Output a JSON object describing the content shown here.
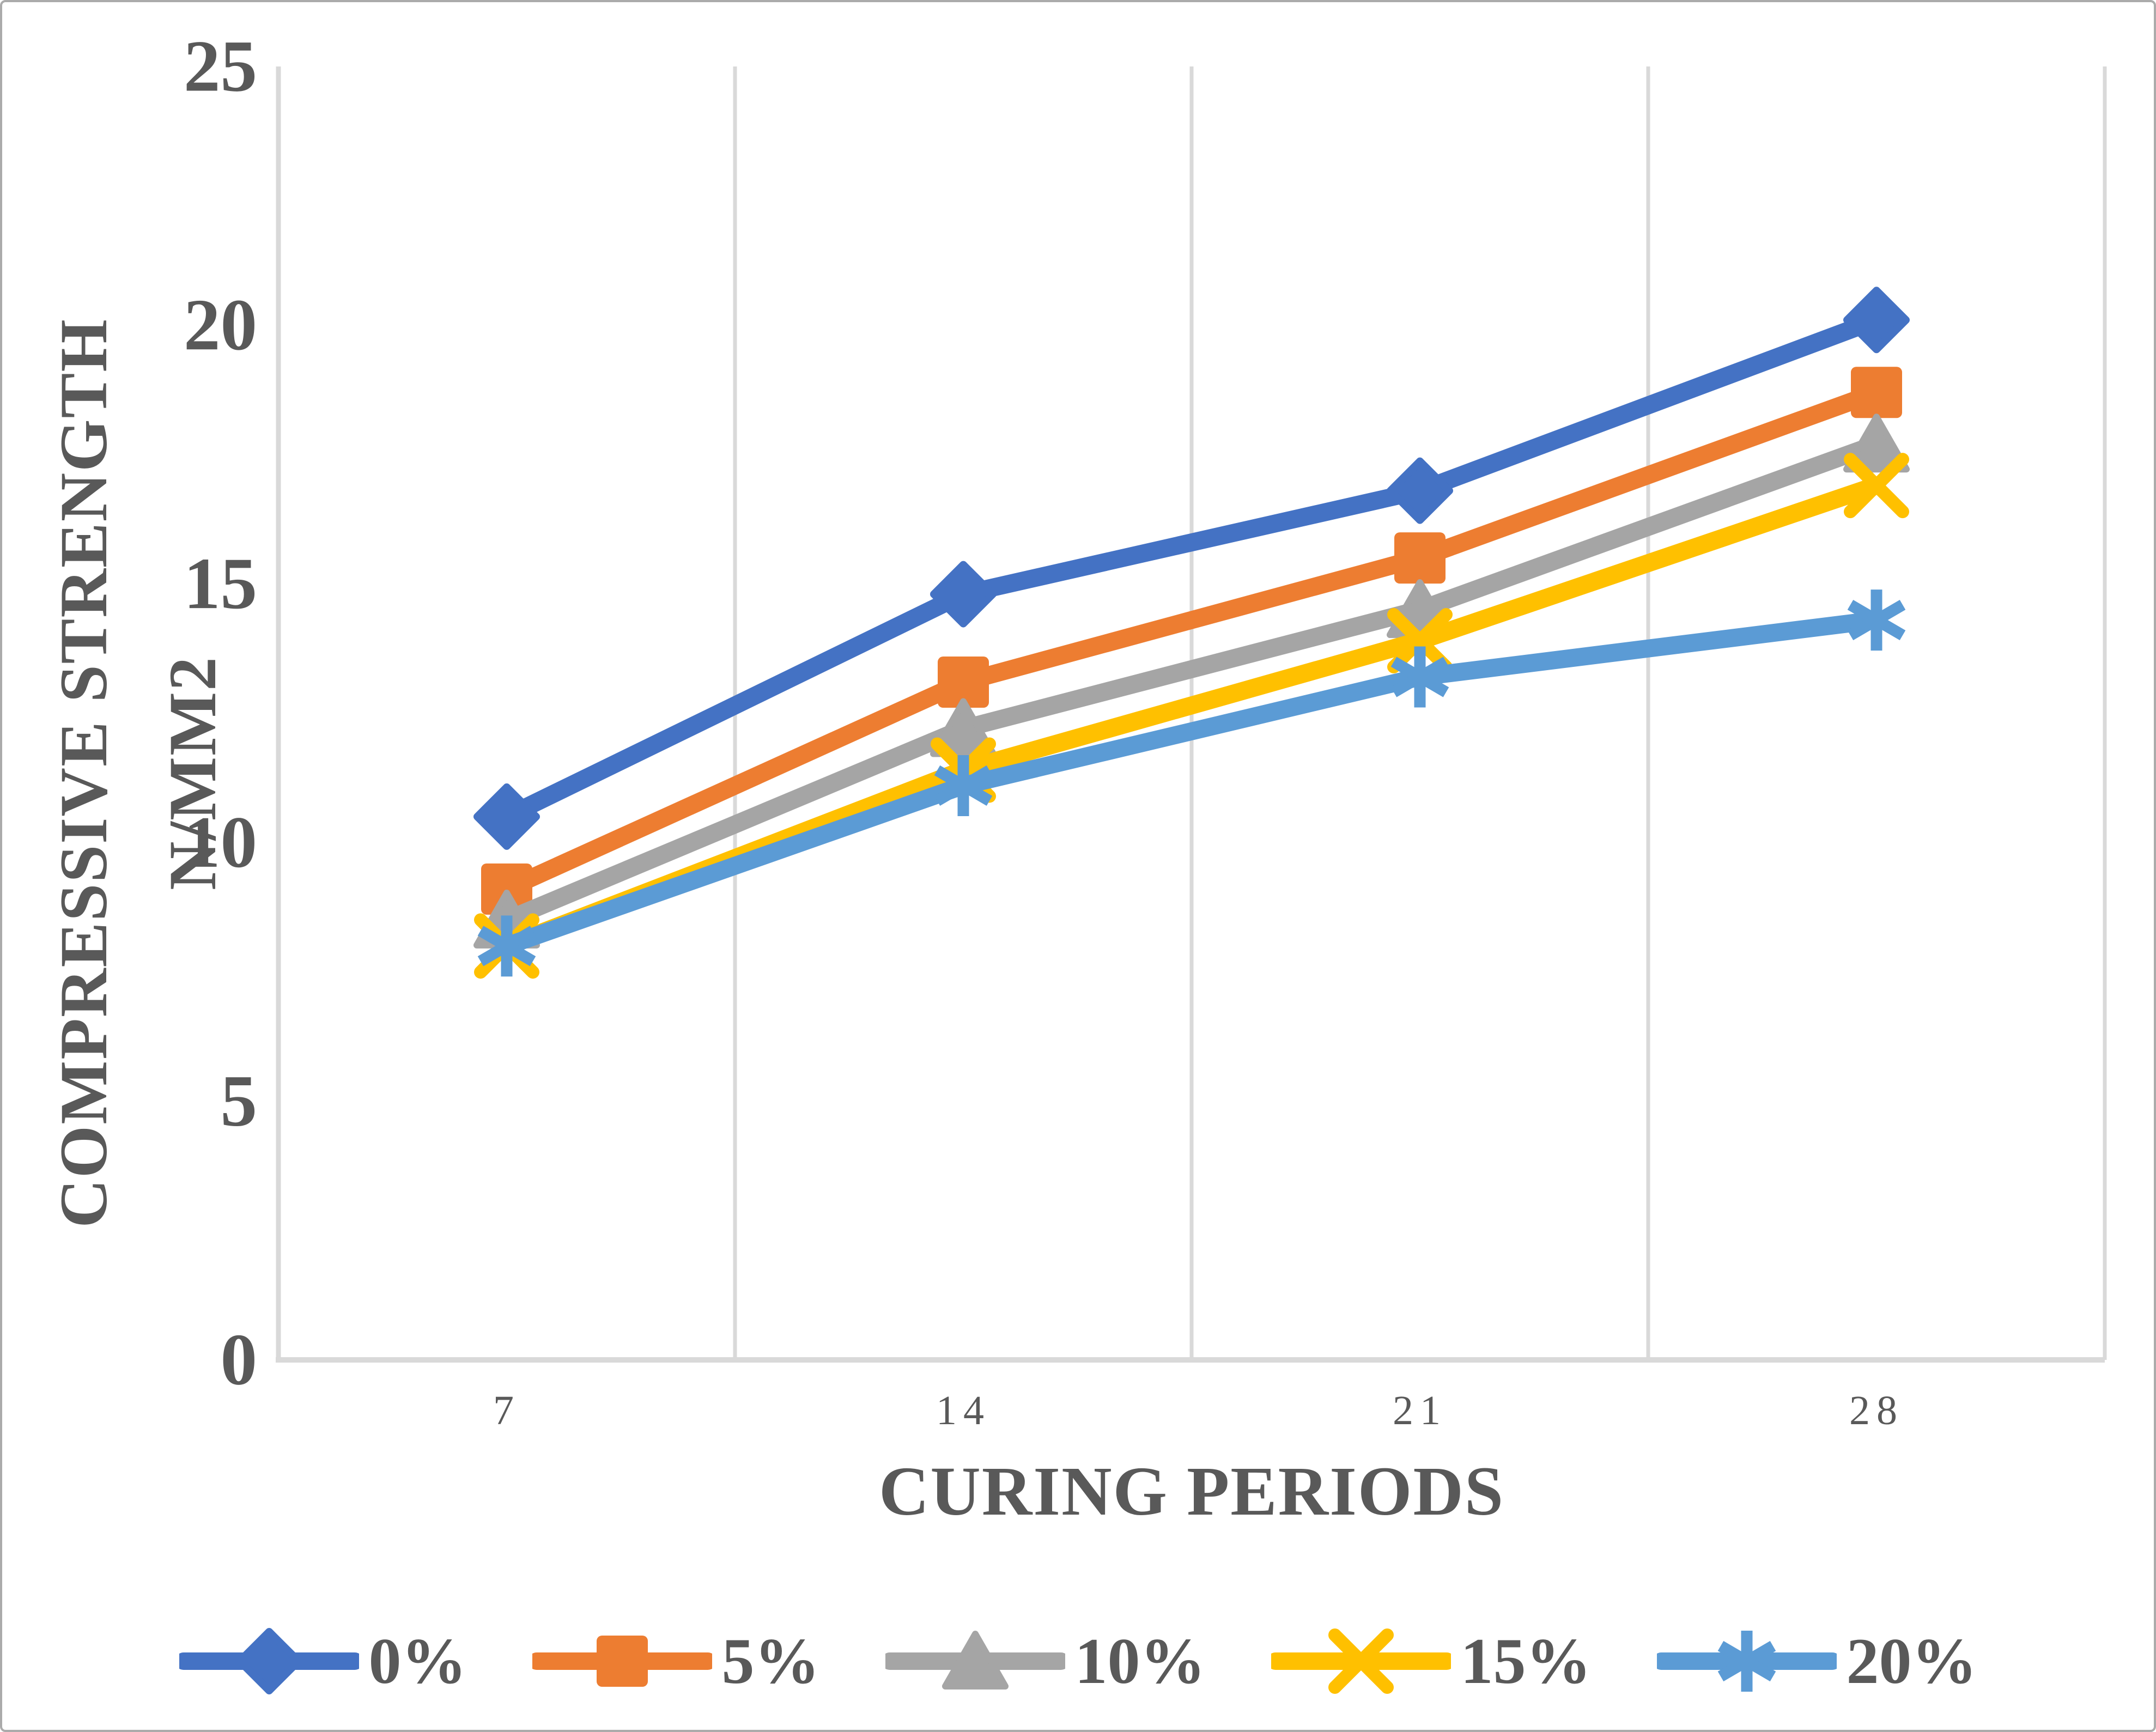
{
  "chart_data": {
    "type": "line",
    "title": "",
    "xlabel": "CURING PERIODS",
    "ylabel": "COMPRESSIVE STRENGTH N/MM2",
    "categories": [
      "7",
      "14",
      "21",
      "28"
    ],
    "series": [
      {
        "name": "0%",
        "marker": "diamond",
        "color": "#4472C4",
        "values": [
          10.5,
          14.8,
          16.8,
          20.1
        ]
      },
      {
        "name": "5%",
        "marker": "square",
        "color": "#ED7D31",
        "values": [
          9.1,
          13.1,
          15.5,
          18.7
        ]
      },
      {
        "name": "10%",
        "marker": "triangle",
        "color": "#A5A5A5",
        "values": [
          8.5,
          12.2,
          14.5,
          17.7
        ]
      },
      {
        "name": "15%",
        "marker": "x",
        "color": "#FFC000",
        "values": [
          8.0,
          11.4,
          13.9,
          16.9
        ]
      },
      {
        "name": "20%",
        "marker": "asterisk",
        "color": "#5B9BD5",
        "values": [
          8.0,
          11.1,
          13.2,
          14.3
        ]
      }
    ],
    "y_ticks": [
      0,
      5,
      10,
      15,
      20,
      25
    ],
    "ylim": [
      0,
      25
    ],
    "grid": "vertical-only",
    "legend_position": "bottom"
  },
  "colors": {
    "text": "#595959",
    "axis": "#D9D9D9",
    "grid": "#D9D9D9",
    "border": "#ABABAB",
    "background": "#FFFFFF"
  }
}
